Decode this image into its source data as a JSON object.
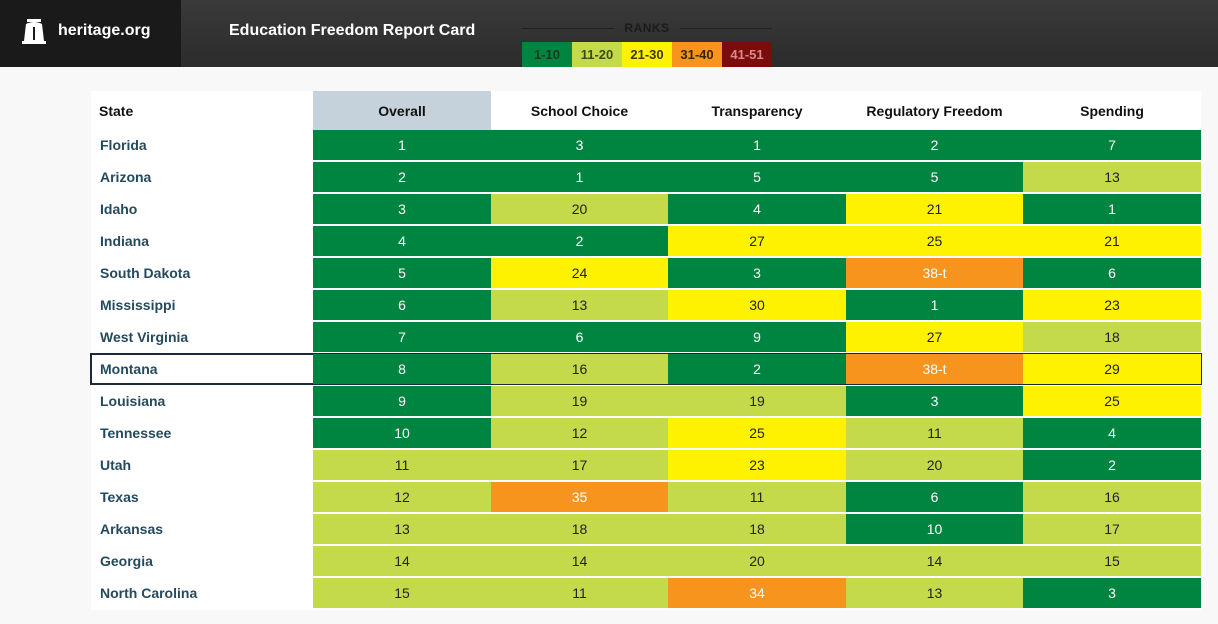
{
  "header": {
    "site": "heritage.org",
    "title": "Education Freedom Report Card"
  },
  "legend": {
    "title": "RANKS",
    "buckets": [
      {
        "label": "1-10",
        "color": "#008540"
      },
      {
        "label": "11-20",
        "color": "#c5da4b"
      },
      {
        "label": "21-30",
        "color": "#fff200"
      },
      {
        "label": "31-40",
        "color": "#f7941d"
      },
      {
        "label": "41-51",
        "color": "#7a0c0c"
      }
    ]
  },
  "table": {
    "columns": [
      "State",
      "Overall",
      "School Choice",
      "Transparency",
      "Regulatory Freedom",
      "Spending"
    ],
    "selected_column": "Overall",
    "highlighted_state": "Montana",
    "rows": [
      {
        "state": "Florida",
        "values": [
          "1",
          "3",
          "1",
          "2",
          "7"
        ]
      },
      {
        "state": "Arizona",
        "values": [
          "2",
          "1",
          "5",
          "5",
          "13"
        ]
      },
      {
        "state": "Idaho",
        "values": [
          "3",
          "20",
          "4",
          "21",
          "1"
        ]
      },
      {
        "state": "Indiana",
        "values": [
          "4",
          "2",
          "27",
          "25",
          "21"
        ]
      },
      {
        "state": "South Dakota",
        "values": [
          "5",
          "24",
          "3",
          "38-t",
          "6"
        ]
      },
      {
        "state": "Mississippi",
        "values": [
          "6",
          "13",
          "30",
          "1",
          "23"
        ]
      },
      {
        "state": "West Virginia",
        "values": [
          "7",
          "6",
          "9",
          "27",
          "18"
        ]
      },
      {
        "state": "Montana",
        "values": [
          "8",
          "16",
          "2",
          "38-t",
          "29"
        ]
      },
      {
        "state": "Louisiana",
        "values": [
          "9",
          "19",
          "19",
          "3",
          "25"
        ]
      },
      {
        "state": "Tennessee",
        "values": [
          "10",
          "12",
          "25",
          "11",
          "4"
        ]
      },
      {
        "state": "Utah",
        "values": [
          "11",
          "17",
          "23",
          "20",
          "2"
        ]
      },
      {
        "state": "Texas",
        "values": [
          "12",
          "35",
          "11",
          "6",
          "16"
        ]
      },
      {
        "state": "Arkansas",
        "values": [
          "13",
          "18",
          "18",
          "10",
          "17"
        ]
      },
      {
        "state": "Georgia",
        "values": [
          "14",
          "14",
          "20",
          "14",
          "15"
        ]
      },
      {
        "state": "North Carolina",
        "values": [
          "15",
          "11",
          "34",
          "13",
          "3"
        ]
      }
    ]
  }
}
